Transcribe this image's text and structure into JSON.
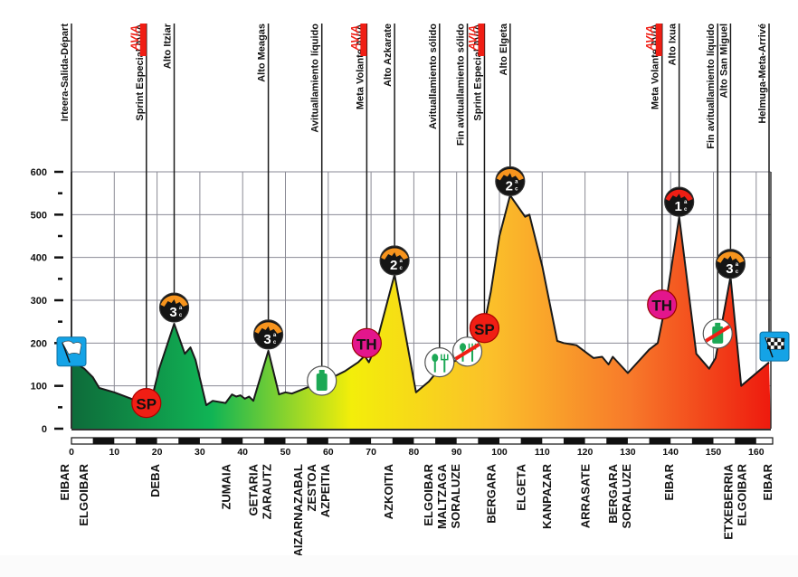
{
  "chart_data": {
    "type": "area",
    "title": "",
    "xlabel": "",
    "ylabel": "",
    "xlim": [
      0,
      163
    ],
    "ylim": [
      0,
      600
    ],
    "grid": true,
    "x_ticks": [
      0,
      10,
      20,
      30,
      40,
      50,
      60,
      70,
      80,
      90,
      100,
      110,
      120,
      130,
      140,
      150,
      160
    ],
    "x_tick_labels": [
      "0",
      "10",
      "20",
      "30",
      "40",
      "50",
      "60",
      "70",
      "80",
      "90",
      "100",
      "110",
      "120",
      "130",
      "140",
      "150",
      "160"
    ],
    "y_ticks": [
      0,
      100,
      200,
      300,
      400,
      500,
      600
    ],
    "y_tick_labels": [
      "0",
      "100",
      "200",
      "300",
      "400",
      "500",
      "600"
    ],
    "y_minor_ticks": [
      50,
      150,
      250,
      350,
      450,
      550
    ],
    "fill_gradient": [
      "#0e6b3a",
      "#10b455",
      "#f3ee0a",
      "#fbc02a",
      "#f7792a",
      "#ee1a0e"
    ],
    "profile": [
      {
        "km": 0,
        "alt": 160
      },
      {
        "km": 3,
        "alt": 140
      },
      {
        "km": 5,
        "alt": 120
      },
      {
        "km": 6.5,
        "alt": 95
      },
      {
        "km": 10,
        "alt": 85
      },
      {
        "km": 14,
        "alt": 70
      },
      {
        "km": 17,
        "alt": 60
      },
      {
        "km": 19,
        "alt": 80
      },
      {
        "km": 20.5,
        "alt": 140
      },
      {
        "km": 24,
        "alt": 245
      },
      {
        "km": 26.5,
        "alt": 175
      },
      {
        "km": 27.8,
        "alt": 190
      },
      {
        "km": 29,
        "alt": 160
      },
      {
        "km": 31.5,
        "alt": 55
      },
      {
        "km": 33,
        "alt": 65
      },
      {
        "km": 36,
        "alt": 60
      },
      {
        "km": 37.5,
        "alt": 80
      },
      {
        "km": 38.5,
        "alt": 75
      },
      {
        "km": 39.5,
        "alt": 78
      },
      {
        "km": 40.5,
        "alt": 70
      },
      {
        "km": 41.5,
        "alt": 75
      },
      {
        "km": 42.5,
        "alt": 65
      },
      {
        "km": 46,
        "alt": 182
      },
      {
        "km": 48.5,
        "alt": 80
      },
      {
        "km": 50,
        "alt": 85
      },
      {
        "km": 51.5,
        "alt": 82
      },
      {
        "km": 53.5,
        "alt": 90
      },
      {
        "km": 56,
        "alt": 100
      },
      {
        "km": 60,
        "alt": 115
      },
      {
        "km": 64,
        "alt": 135
      },
      {
        "km": 67,
        "alt": 155
      },
      {
        "km": 68.5,
        "alt": 170
      },
      {
        "km": 69.5,
        "alt": 155
      },
      {
        "km": 71,
        "alt": 190
      },
      {
        "km": 75.5,
        "alt": 360
      },
      {
        "km": 80.5,
        "alt": 85
      },
      {
        "km": 83.5,
        "alt": 110
      },
      {
        "km": 86,
        "alt": 140
      },
      {
        "km": 91,
        "alt": 165
      },
      {
        "km": 94,
        "alt": 190
      },
      {
        "km": 96,
        "alt": 220
      },
      {
        "km": 98,
        "alt": 320
      },
      {
        "km": 100,
        "alt": 450
      },
      {
        "km": 102.5,
        "alt": 545
      },
      {
        "km": 106,
        "alt": 495
      },
      {
        "km": 107,
        "alt": 500
      },
      {
        "km": 110,
        "alt": 380
      },
      {
        "km": 113.5,
        "alt": 205
      },
      {
        "km": 115,
        "alt": 200
      },
      {
        "km": 118,
        "alt": 195
      },
      {
        "km": 122,
        "alt": 165
      },
      {
        "km": 124,
        "alt": 168
      },
      {
        "km": 125.5,
        "alt": 150
      },
      {
        "km": 126.5,
        "alt": 168
      },
      {
        "km": 130,
        "alt": 130
      },
      {
        "km": 135,
        "alt": 185
      },
      {
        "km": 137,
        "alt": 200
      },
      {
        "km": 139,
        "alt": 300
      },
      {
        "km": 142,
        "alt": 495
      },
      {
        "km": 146,
        "alt": 175
      },
      {
        "km": 149,
        "alt": 140
      },
      {
        "km": 150.5,
        "alt": 165
      },
      {
        "km": 154,
        "alt": 355
      },
      {
        "km": 156.5,
        "alt": 100
      },
      {
        "km": 163,
        "alt": 155
      }
    ],
    "events": [
      {
        "km": 0,
        "label": "Irteera-Salida-Départ",
        "avia": false,
        "marker": "start-flag",
        "marker_alt": 180
      },
      {
        "km": 17.5,
        "label": "Sprint Especial AVIA",
        "avia": true,
        "marker": "sprint",
        "marker_alt": 60
      },
      {
        "km": 24,
        "label": "Alto Itziar",
        "avia": false,
        "marker": "climb",
        "category": "3",
        "peak": "orange",
        "marker_alt": 283
      },
      {
        "km": 46,
        "label": "Alto Meagas",
        "avia": false,
        "marker": "climb",
        "category": "3",
        "peak": "orange",
        "marker_alt": 220
      },
      {
        "km": 58.5,
        "label": "Avituallamiento líquido",
        "avia": false,
        "marker": "bottle",
        "marker_alt": 112
      },
      {
        "km": 69,
        "label": "Meta Volante AVIA",
        "avia": true,
        "marker": "th",
        "marker_alt": 200
      },
      {
        "km": 75.5,
        "label": "Alto Azkarate",
        "avia": false,
        "marker": "climb",
        "category": "2",
        "peak": "orange",
        "marker_alt": 393
      },
      {
        "km": 86,
        "label": "Avituallamiento sólido",
        "avia": false,
        "marker": "food",
        "marker_alt": 155
      },
      {
        "km": 92.5,
        "label": "Fin avituallamiento sólido",
        "avia": false,
        "marker": "food-end",
        "marker_alt": 180
      },
      {
        "km": 96.5,
        "label": "Sprint Especial AVIA",
        "avia": true,
        "marker": "sprint",
        "marker_alt": 235
      },
      {
        "km": 102.5,
        "label": "Alto Elgeta",
        "avia": false,
        "marker": "climb",
        "category": "2",
        "peak": "orange",
        "marker_alt": 578
      },
      {
        "km": 138,
        "label": "Meta Volante AVIA",
        "avia": true,
        "marker": "th",
        "marker_alt": 290
      },
      {
        "km": 142,
        "label": "Alto Ixua",
        "avia": false,
        "marker": "climb",
        "category": "1",
        "peak": "red",
        "marker_alt": 530
      },
      {
        "km": 151,
        "label": "Fin avituallamiento líquido",
        "avia": false,
        "marker": "bottle-end",
        "marker_alt": 222
      },
      {
        "km": 154,
        "label": "Alto San Miguel",
        "avia": false,
        "marker": "climb",
        "category": "3",
        "peak": "orange",
        "marker_alt": 385
      },
      {
        "km": 163,
        "label": "Helmuga-Meta-Arrivé",
        "avia": false,
        "marker": "finish-flag",
        "marker_alt": 192
      }
    ],
    "towns": [
      {
        "km": 0,
        "lines": [
          "EIBAR",
          "ELGOIBAR"
        ]
      },
      {
        "km": 19.5,
        "lines": [
          "DEBA"
        ]
      },
      {
        "km": 36,
        "lines": [
          "ZUMAIA"
        ]
      },
      {
        "km": 44,
        "lines": [
          "GETARIA",
          "ZARAUTZ"
        ]
      },
      {
        "km": 56,
        "lines": [
          "AIZARNAZABAL",
          "ZESTOA",
          "AZPEITIA"
        ]
      },
      {
        "km": 74,
        "lines": [
          "AZKOITIA"
        ]
      },
      {
        "km": 86.5,
        "lines": [
          "ELGOIBAR",
          "MALTZAGA",
          "SORALUZE"
        ]
      },
      {
        "km": 98,
        "lines": [
          "BERGARA"
        ]
      },
      {
        "km": 105,
        "lines": [
          "ELGETA"
        ]
      },
      {
        "km": 111,
        "lines": [
          "KANPAZAR"
        ]
      },
      {
        "km": 120,
        "lines": [
          "ARRASATE"
        ]
      },
      {
        "km": 128,
        "lines": [
          "BERGARA",
          "SORALUZE"
        ]
      },
      {
        "km": 139.5,
        "lines": [
          "EIBAR"
        ]
      },
      {
        "km": 155,
        "lines": [
          "ETXEBERRIA",
          "ELGOIBAR"
        ]
      },
      {
        "km": 163,
        "lines": [
          "EIBAR"
        ]
      }
    ],
    "labels": {
      "avia_logo": "AVIA",
      "sprint_badge": "SP",
      "meta_volante_badge": "TH",
      "category_suffix_top": "a",
      "category_suffix_bottom": "c"
    }
  }
}
